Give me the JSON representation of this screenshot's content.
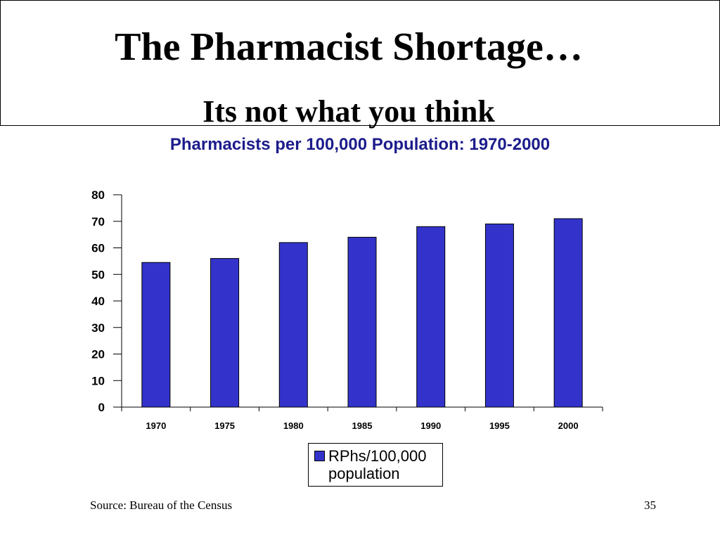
{
  "slide": {
    "title": "The Pharmacist Shortage…",
    "subtitle": "Its not what you think",
    "source": "Source: Bureau of the Census",
    "page_number": "35"
  },
  "chart_data": {
    "type": "bar",
    "title": "Pharmacists per 100,000 Population: 1970-2000",
    "categories": [
      "1970",
      "1975",
      "1980",
      "1985",
      "1990",
      "1995",
      "2000"
    ],
    "series": [
      {
        "name": "RPhs/100,000 population",
        "values": [
          54.5,
          56,
          62,
          64,
          68,
          69,
          71
        ],
        "color": "#3333cc"
      }
    ],
    "ylim": [
      0,
      80
    ],
    "yticks": [
      0,
      10,
      20,
      30,
      40,
      50,
      60,
      70,
      80
    ],
    "xlabel": "",
    "ylabel": "",
    "grid": false,
    "legend_position": "bottom",
    "title_color": "#1c1c8c"
  }
}
